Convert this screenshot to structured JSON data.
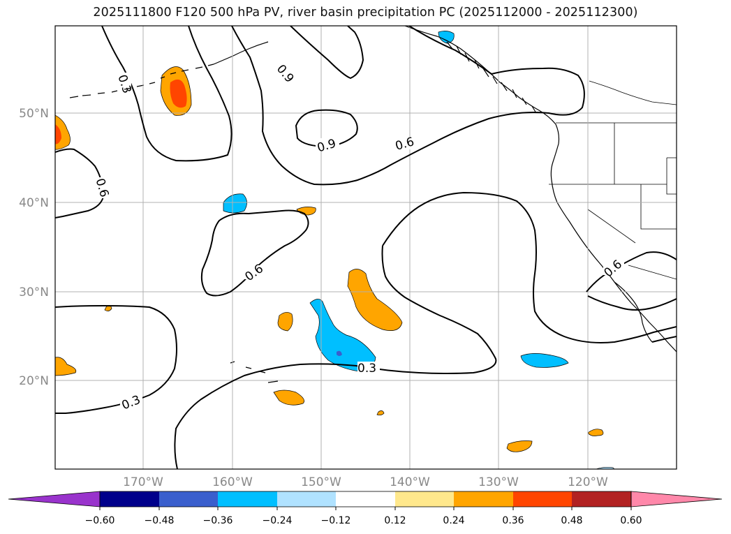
{
  "title": "2025111800 F120 500 hPa PV, river basin precipitation PC (2025112000 - 2025112300)",
  "longitude_labels": [
    "170°W",
    "160°W",
    "150°W",
    "140°W",
    "130°W",
    "120°W"
  ],
  "latitude_labels": [
    "50°N",
    "40°N",
    "30°N",
    "20°N"
  ],
  "contour_labels": [
    "0.3",
    "0.9",
    "0.6",
    "0.9",
    "0.6",
    "0.6",
    "0.3",
    "0.3",
    "0.6"
  ],
  "colorbar": {
    "ticks": [
      "−0.60",
      "−0.48",
      "−0.36",
      "−0.24",
      "−0.12",
      "0.12",
      "0.24",
      "0.36",
      "0.48",
      "0.60"
    ],
    "colors": [
      "#9933cc",
      "#00008b",
      "#3a5fcd",
      "#00bfff",
      "#b0e2ff",
      "#ffffff",
      "#ffe88c",
      "#ffa500",
      "#ff4500",
      "#b22222",
      "#ff88aa"
    ]
  },
  "map_style": {
    "land_outline": "#000000",
    "gridline_color": "#b0b0b0",
    "contour_color": "#000000",
    "positive_fill_1": "#ffa500",
    "positive_fill_2": "#ff4500",
    "negative_fill_1": "#00bfff",
    "negative_fill_2": "#3a5fcd"
  }
}
